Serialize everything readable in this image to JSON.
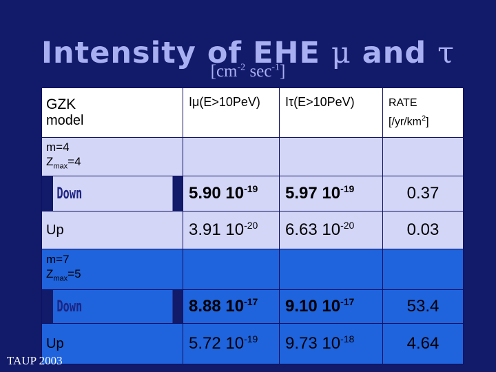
{
  "title": {
    "prefix": "Intensity of EHE",
    "mu": "μ",
    "and": "and",
    "tau": "τ"
  },
  "subtitle": {
    "open": "[cm",
    "exp1": "-2",
    "mid": " sec",
    "exp2": "-1",
    "close": "]"
  },
  "header": {
    "model_l1": "GZK",
    "model_l2": "model",
    "col_mu": "Iμ(E>10PeV)",
    "col_tau": "Iτ(E>10PeV)",
    "rate_l1": "RATE",
    "rate_l2": "[/yr/km",
    "rate_exp": "2",
    "rate_close": "]"
  },
  "groups": [
    {
      "m": "m=4",
      "zmax_prefix": "Z",
      "zmax_sub": "max",
      "zmax_value": "=4",
      "rows": [
        {
          "label": "Down",
          "mu_base": "5.90 10",
          "mu_exp": "-19",
          "tau_base": "5.97 10",
          "tau_exp": "-19",
          "rate": "0.37"
        },
        {
          "label": "Up",
          "mu_base": "3.91 10",
          "mu_exp": "-20",
          "tau_base": "6.63 10",
          "tau_exp": "-20",
          "rate": "0.03"
        }
      ]
    },
    {
      "m": "m=7",
      "zmax_prefix": "Z",
      "zmax_sub": "max",
      "zmax_value": "=5",
      "rows": [
        {
          "label": "Down",
          "mu_base": "8.88 10",
          "mu_exp": "-17",
          "tau_base": "9.10 10",
          "tau_exp": "-17",
          "rate": "53.4"
        },
        {
          "label": "Up",
          "mu_base": "5.72 10",
          "mu_exp": "-19",
          "tau_base": "9.73 10",
          "tau_exp": "-18",
          "rate": "4.64"
        }
      ]
    }
  ],
  "footer": "TAUP 2003",
  "colors": {
    "background": "#121a6a",
    "title": "#a9b0f2",
    "lavender_rows": "#d3d6f7",
    "blue_rows": "#1f63dd"
  }
}
